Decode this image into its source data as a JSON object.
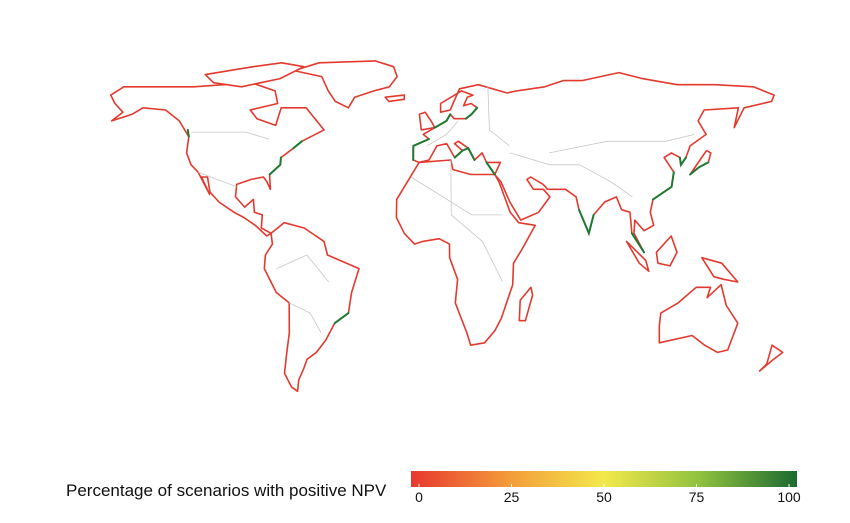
{
  "legend": {
    "title": "Percentage of scenarios with positive NPV",
    "lim": [
      0,
      100
    ],
    "ticks": [
      0,
      25,
      50,
      75,
      100
    ],
    "colors": [
      "#e8372f",
      "#f39a3a",
      "#f3e84b",
      "#8fc13f",
      "#1c6a31"
    ]
  }
}
